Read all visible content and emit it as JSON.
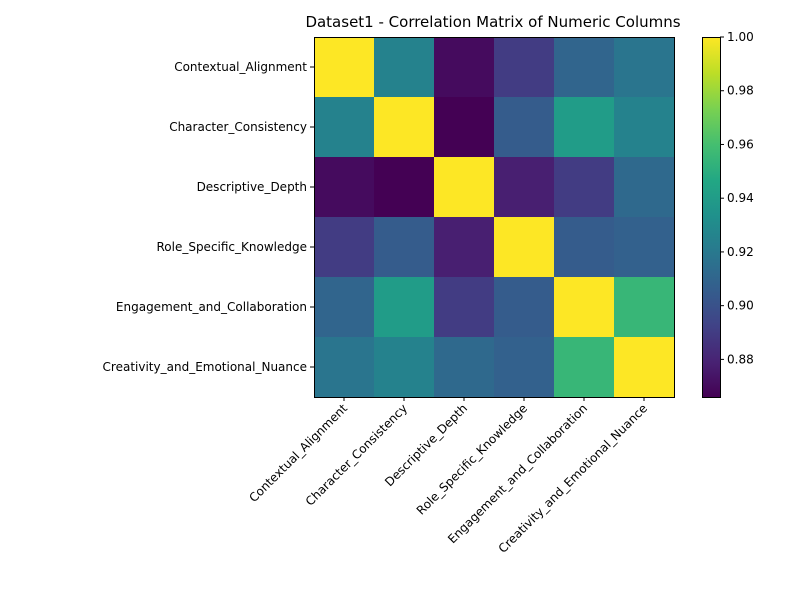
{
  "chart_data": {
    "type": "heatmap",
    "title": "Dataset1 - Correlation Matrix of Numeric Columns",
    "rows": [
      "Contextual_Alignment",
      "Character_Consistency",
      "Descriptive_Depth",
      "Role_Specific_Knowledge",
      "Engagement_and_Collaboration",
      "Creativity_and_Emotional_Nuance"
    ],
    "columns": [
      "Contextual_Alignment",
      "Character_Consistency",
      "Descriptive_Depth",
      "Role_Specific_Knowledge",
      "Engagement_and_Collaboration",
      "Creativity_and_Emotional_Nuance"
    ],
    "values": [
      [
        1.0,
        0.925,
        0.87,
        0.89,
        0.91,
        0.918
      ],
      [
        0.925,
        1.0,
        0.866,
        0.905,
        0.94,
        0.925
      ],
      [
        0.87,
        0.866,
        1.0,
        0.878,
        0.89,
        0.912
      ],
      [
        0.89,
        0.905,
        0.878,
        1.0,
        0.905,
        0.908
      ],
      [
        0.91,
        0.94,
        0.89,
        0.905,
        1.0,
        0.955
      ],
      [
        0.918,
        0.925,
        0.912,
        0.908,
        0.955,
        1.0
      ]
    ],
    "color_range": [
      0.866,
      1.0
    ],
    "colormap": "viridis",
    "colorbar_ticks": [
      "0.88",
      "0.90",
      "0.92",
      "0.94",
      "0.96",
      "0.98",
      "1.00"
    ],
    "colorbar_tick_values": [
      0.88,
      0.9,
      0.92,
      0.94,
      0.96,
      0.98,
      1.0
    ],
    "grid": false,
    "legend": "colorbar-right"
  }
}
